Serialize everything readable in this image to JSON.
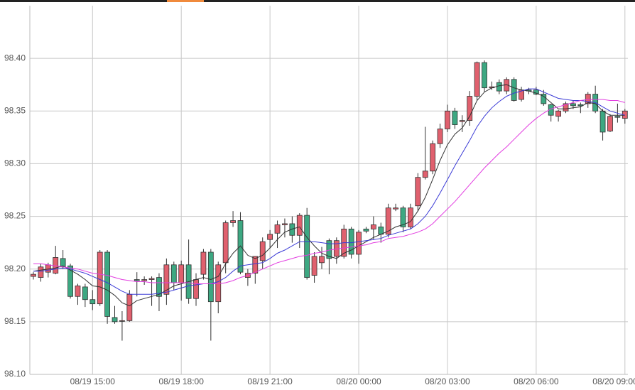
{
  "chart_data": {
    "type": "candlestick",
    "categories": [
      null,
      null,
      null,
      null,
      null,
      null,
      null,
      null,
      "08/19 15:00",
      null,
      null,
      null,
      null,
      null,
      null,
      null,
      null,
      null,
      null,
      null,
      "08/19 18:00",
      null,
      null,
      null,
      null,
      null,
      null,
      null,
      null,
      null,
      null,
      null,
      "08/19 21:00",
      null,
      null,
      null,
      null,
      null,
      null,
      null,
      null,
      null,
      null,
      null,
      "08/20 00:00",
      null,
      null,
      null,
      null,
      null,
      null,
      null,
      null,
      null,
      null,
      null,
      "08/20 03:00",
      null,
      null,
      null,
      null,
      null,
      null,
      null,
      null,
      null,
      null,
      null,
      "08/20 06:00",
      null,
      null,
      null,
      null,
      null,
      null,
      null,
      null,
      null,
      null,
      null,
      "08/20 09:00"
    ],
    "open": [
      98.193,
      98.192,
      98.197,
      98.196,
      98.21,
      98.203,
      98.174,
      98.183,
      98.171,
      98.167,
      98.216,
      98.154,
      98.151,
      98.151,
      98.19,
      98.189,
      98.19,
      98.192,
      98.176,
      98.204,
      98.187,
      98.204,
      98.172,
      98.195,
      98.216,
      98.169,
      98.206,
      98.244,
      98.246,
      98.192,
      98.196,
      98.208,
      98.228,
      98.234,
      98.242,
      98.243,
      98.232,
      98.251,
      98.194,
      98.206,
      98.227,
      98.212,
      98.212,
      98.238,
      98.214,
      98.238,
      98.238,
      98.24,
      98.233,
      98.257,
      98.258,
      98.24,
      98.26,
      98.287,
      98.293,
      98.319,
      98.333,
      98.35,
      98.34,
      98.341,
      98.364,
      98.396,
      98.372,
      98.377,
      98.369,
      98.38,
      98.361,
      98.37,
      98.37,
      98.366,
      98.356,
      98.345,
      98.35,
      98.357,
      98.356,
      98.357,
      98.366,
      98.35,
      98.331,
      98.345,
      98.343
    ],
    "high": [
      98.197,
      98.205,
      98.206,
      98.222,
      98.218,
      98.205,
      98.186,
      98.186,
      98.18,
      98.218,
      98.218,
      98.165,
      98.16,
      98.18,
      98.197,
      98.193,
      98.193,
      98.196,
      98.21,
      98.207,
      98.208,
      98.228,
      98.196,
      98.219,
      98.219,
      98.207,
      98.246,
      98.255,
      98.254,
      98.2,
      98.212,
      98.23,
      98.237,
      98.246,
      98.248,
      98.25,
      98.253,
      98.258,
      98.216,
      98.221,
      98.229,
      98.23,
      98.242,
      98.24,
      98.237,
      98.24,
      98.25,
      98.244,
      98.262,
      98.262,
      98.26,
      98.262,
      98.291,
      98.335,
      98.322,
      98.338,
      98.356,
      98.353,
      98.346,
      98.369,
      98.397,
      98.398,
      98.378,
      98.38,
      98.382,
      98.382,
      98.373,
      98.372,
      98.373,
      98.37,
      98.357,
      98.351,
      98.359,
      98.36,
      98.358,
      98.368,
      98.374,
      98.352,
      98.347,
      98.357,
      98.352
    ],
    "low": [
      98.19,
      98.188,
      98.192,
      98.195,
      98.2,
      98.172,
      98.166,
      98.164,
      98.161,
      98.165,
      98.148,
      98.148,
      98.132,
      98.15,
      98.174,
      98.185,
      98.165,
      98.16,
      98.166,
      98.18,
      98.17,
      98.167,
      98.165,
      98.19,
      98.132,
      98.158,
      98.196,
      98.24,
      98.195,
      98.184,
      98.186,
      98.2,
      98.22,
      98.22,
      98.23,
      98.225,
      98.22,
      98.19,
      98.187,
      98.2,
      98.195,
      98.205,
      98.21,
      98.21,
      98.205,
      98.234,
      98.228,
      98.225,
      98.23,
      98.255,
      98.235,
      98.238,
      98.255,
      98.285,
      98.29,
      98.315,
      98.33,
      98.333,
      98.33,
      98.336,
      98.36,
      98.368,
      98.37,
      98.366,
      98.366,
      98.359,
      98.359,
      98.366,
      98.365,
      98.355,
      98.34,
      98.34,
      98.348,
      98.352,
      98.348,
      98.353,
      98.348,
      98.322,
      98.33,
      98.339,
      98.338
    ],
    "close": [
      98.195,
      98.202,
      98.204,
      98.211,
      98.202,
      98.174,
      98.184,
      98.171,
      98.167,
      98.216,
      98.155,
      98.15,
      98.151,
      98.176,
      98.189,
      98.19,
      98.191,
      98.174,
      98.204,
      98.187,
      98.204,
      98.172,
      98.19,
      98.216,
      98.169,
      98.204,
      98.244,
      98.246,
      98.197,
      98.196,
      98.212,
      98.226,
      98.233,
      98.242,
      98.243,
      98.232,
      98.251,
      98.192,
      98.212,
      98.212,
      98.21,
      98.227,
      98.238,
      98.214,
      98.235,
      98.236,
      98.242,
      98.233,
      98.258,
      98.258,
      98.24,
      98.258,
      98.287,
      98.293,
      98.319,
      98.333,
      98.35,
      98.337,
      98.341,
      98.364,
      98.396,
      98.372,
      98.373,
      98.369,
      98.38,
      98.36,
      98.37,
      98.369,
      98.366,
      98.357,
      98.346,
      98.35,
      98.357,
      98.355,
      98.355,
      98.366,
      98.35,
      98.33,
      98.345,
      98.344,
      98.35
    ],
    "up_color": "#e0606e",
    "down_color": "#3da882",
    "series": [
      {
        "color": "#333333",
        "values": [
          98.198,
          98.199,
          98.2,
          98.201,
          98.203,
          98.199,
          98.195,
          98.19,
          98.184,
          98.183,
          98.18,
          98.175,
          98.168,
          98.165,
          98.17,
          98.172,
          98.174,
          98.176,
          98.18,
          98.184,
          98.186,
          98.188,
          98.19,
          98.192,
          98.19,
          98.193,
          98.205,
          98.215,
          98.222,
          98.213,
          98.21,
          98.213,
          98.22,
          98.228,
          98.235,
          98.238,
          98.24,
          98.23,
          98.222,
          98.215,
          98.212,
          98.21,
          98.215,
          98.218,
          98.222,
          98.226,
          98.23,
          98.233,
          98.236,
          98.24,
          98.242,
          98.245,
          98.255,
          98.268,
          98.285,
          98.303,
          98.318,
          98.328,
          98.334,
          98.345,
          98.36,
          98.368,
          98.372,
          98.374,
          98.375,
          98.372,
          98.37,
          98.369,
          98.367,
          98.364,
          98.358,
          98.352,
          98.352,
          98.353,
          98.354,
          98.358,
          98.357,
          98.35,
          98.346,
          98.346,
          98.346
        ]
      },
      {
        "color": "#3b3bd6",
        "values": [
          98.198,
          98.198,
          98.199,
          98.2,
          98.201,
          98.2,
          98.198,
          98.196,
          98.193,
          98.19,
          98.187,
          98.183,
          98.179,
          98.176,
          98.176,
          98.176,
          98.176,
          98.177,
          98.178,
          98.18,
          98.182,
          98.184,
          98.185,
          98.186,
          98.186,
          98.188,
          98.192,
          98.198,
          98.203,
          98.204,
          98.205,
          98.206,
          98.21,
          98.215,
          98.218,
          98.222,
          98.226,
          98.226,
          98.226,
          98.225,
          98.224,
          98.224,
          98.225,
          98.225,
          98.226,
          98.227,
          98.228,
          98.229,
          98.232,
          98.234,
          98.236,
          98.238,
          98.243,
          98.25,
          98.26,
          98.272,
          98.285,
          98.298,
          98.31,
          98.322,
          98.335,
          98.345,
          98.353,
          98.359,
          98.364,
          98.367,
          98.369,
          98.371,
          98.371,
          98.368,
          98.365,
          98.362,
          98.361,
          98.36,
          98.36,
          98.359,
          98.358,
          98.354,
          98.35,
          98.348,
          98.346
        ]
      },
      {
        "color": "#e23be0",
        "values": [
          98.205,
          98.205,
          98.204,
          98.203,
          98.202,
          98.201,
          98.2,
          98.198,
          98.196,
          98.195,
          98.194,
          98.192,
          98.19,
          98.189,
          98.188,
          98.188,
          98.187,
          98.187,
          98.187,
          98.187,
          98.187,
          98.187,
          98.186,
          98.186,
          98.186,
          98.186,
          98.187,
          98.189,
          98.192,
          98.194,
          98.197,
          98.2,
          98.203,
          98.206,
          98.208,
          98.21,
          98.212,
          98.213,
          98.215,
          98.216,
          98.218,
          98.219,
          98.22,
          98.221,
          98.222,
          98.223,
          98.225,
          98.226,
          98.229,
          98.23,
          98.231,
          98.233,
          98.235,
          98.238,
          98.243,
          98.25,
          98.257,
          98.264,
          98.272,
          98.28,
          98.288,
          98.296,
          98.303,
          98.31,
          98.316,
          98.323,
          98.33,
          98.337,
          98.343,
          98.348,
          98.352,
          98.354,
          98.356,
          98.358,
          98.36,
          98.361,
          98.361,
          98.361,
          98.36,
          98.36,
          98.358
        ]
      }
    ],
    "ylim": [
      98.1,
      98.45
    ],
    "yticks": [
      {
        "value": 98.1,
        "label": "98.10"
      },
      98.15,
      {
        "value": 98.2,
        "label": "98.20"
      },
      98.25,
      {
        "value": 98.3,
        "label": "98.30"
      },
      98.35,
      {
        "value": 98.4,
        "label": "98.40"
      }
    ],
    "grid": true
  }
}
